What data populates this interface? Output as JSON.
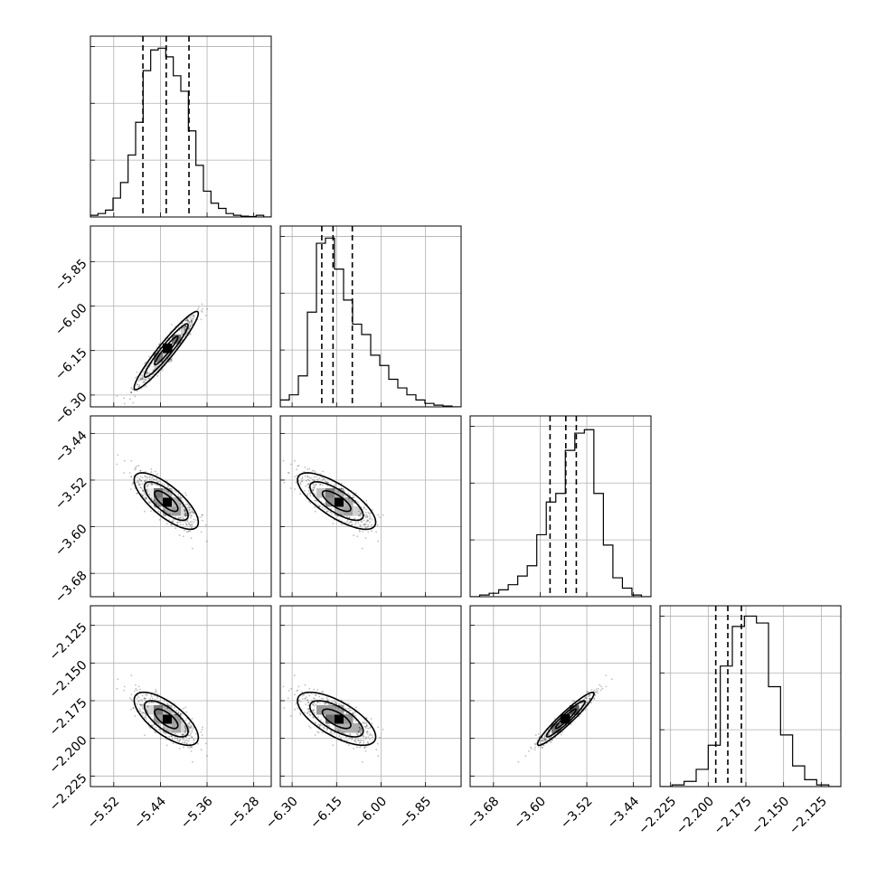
{
  "chart_data": {
    "type": "corner",
    "parameters": [
      {
        "index": 0,
        "range": [
          -5.56,
          -5.25
        ],
        "ticks": [
          -5.52,
          -5.44,
          -5.36,
          -5.28
        ],
        "tick_labels": [
          "−5.52",
          "−5.44",
          "−5.36",
          "−5.28"
        ],
        "quantiles": [
          -5.47,
          -5.43,
          -5.391
        ],
        "histogram": [
          0.01,
          0.02,
          0.04,
          0.11,
          0.2,
          0.36,
          0.55,
          0.85,
          0.97,
          0.98,
          0.93,
          0.82,
          0.73,
          0.5,
          0.3,
          0.15,
          0.08,
          0.05,
          0.02,
          0.01,
          0.005,
          0.003,
          0.01,
          0.0
        ],
        "mean": -5.43,
        "sigma": 0.025
      },
      {
        "index": 1,
        "range": [
          -6.34,
          -5.73
        ],
        "ticks": [
          -6.3,
          -6.15,
          -6.0,
          -5.85
        ],
        "tick_labels": [
          "−6.30",
          "−6.15",
          "−6.00",
          "−5.85"
        ],
        "quantiles": [
          -6.2,
          -6.162,
          -6.097
        ],
        "histogram": [
          0.04,
          0.07,
          0.18,
          0.55,
          0.95,
          0.98,
          0.8,
          0.62,
          0.48,
          0.42,
          0.3,
          0.24,
          0.16,
          0.11,
          0.07,
          0.04,
          0.02,
          0.01,
          0.005,
          0.0
        ],
        "mean": -6.15,
        "sigma": 0.06
      },
      {
        "index": 2,
        "range": [
          -3.72,
          -3.41
        ],
        "ticks": [
          -3.68,
          -3.6,
          -3.52,
          -3.44
        ],
        "tick_labels": [
          "−3.68",
          "−3.60",
          "−3.52",
          "−3.44"
        ],
        "quantiles": [
          -3.583,
          -3.556,
          -3.538
        ],
        "histogram": [
          0.0,
          0.01,
          0.02,
          0.04,
          0.07,
          0.12,
          0.18,
          0.36,
          0.55,
          0.6,
          0.85,
          0.95,
          0.97,
          0.6,
          0.3,
          0.11,
          0.05,
          0.01,
          0.0
        ],
        "mean": -3.556,
        "sigma": 0.022
      },
      {
        "index": 3,
        "range": [
          -2.232,
          -2.112
        ],
        "ticks": [
          -2.225,
          -2.2,
          -2.175,
          -2.15,
          -2.125
        ],
        "tick_labels": [
          "−2.225",
          "−2.200",
          "−2.175",
          "−2.150",
          "−2.125"
        ],
        "quantiles": [
          -2.195,
          -2.187,
          -2.178
        ],
        "histogram": [
          0.0,
          0.01,
          0.03,
          0.1,
          0.24,
          0.7,
          0.93,
          0.99,
          0.95,
          0.58,
          0.3,
          0.12,
          0.04,
          0.01,
          0.0
        ],
        "mean": -2.187,
        "sigma": 0.008
      }
    ],
    "correlations": [
      [
        1,
        0.95,
        -0.75,
        -0.7
      ],
      [
        0.95,
        1,
        -0.75,
        -0.68
      ],
      [
        -0.75,
        -0.75,
        1,
        0.95
      ],
      [
        -0.7,
        -0.68,
        0.95,
        1
      ]
    ],
    "contour_levels_sigma": [
      0.8,
      1.5,
      2.2
    ],
    "grid": true,
    "n_samples_drawn": 1400
  }
}
